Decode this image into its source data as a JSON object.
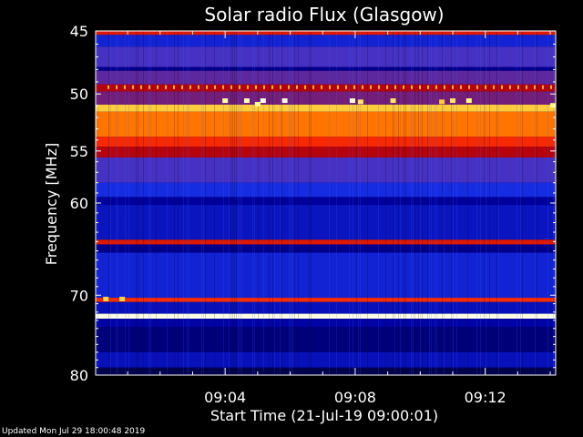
{
  "chart_data": {
    "type": "heatmap",
    "title": "Solar radio Flux (Glasgow)",
    "xlabel": "Start Time (21-Jul-19 09:00:01)",
    "ylabel": "Frequency [MHz]",
    "x_range": [
      "09:00:01",
      "09:14:10"
    ],
    "xticks": [
      {
        "label": "09:04",
        "value": "09:04:00"
      },
      {
        "label": "09:08",
        "value": "09:08:00"
      },
      {
        "label": "09:12",
        "value": "09:12:00"
      }
    ],
    "y_scale": "log",
    "ylim": [
      45,
      80
    ],
    "y_inverted": true,
    "yticks": [
      45,
      50,
      55,
      60,
      70,
      80
    ],
    "colormap": [
      "#000020",
      "#0000a0",
      "#2040ff",
      "#c00000",
      "#ff3000",
      "#ffa000",
      "#ffff80",
      "#ffffff"
    ],
    "bands": [
      {
        "f_low": 45.0,
        "f_high": 45.3,
        "level": 0.5
      },
      {
        "f_low": 45.3,
        "f_high": 46.2,
        "level": 0.22
      },
      {
        "f_low": 46.2,
        "f_high": 47.8,
        "level": 0.32
      },
      {
        "f_low": 47.8,
        "f_high": 48.1,
        "level": 0.12
      },
      {
        "f_low": 48.1,
        "f_high": 49.2,
        "level": 0.34
      },
      {
        "f_low": 49.2,
        "f_high": 49.8,
        "level": 0.42
      },
      {
        "f_low": 49.8,
        "f_high": 50.9,
        "level": 0.36
      },
      {
        "f_low": 50.9,
        "f_high": 51.5,
        "level": 0.78
      },
      {
        "f_low": 51.5,
        "f_high": 53.7,
        "level": 0.66
      },
      {
        "f_low": 53.7,
        "f_high": 54.6,
        "level": 0.55
      },
      {
        "f_low": 54.6,
        "f_high": 55.6,
        "level": 0.42
      },
      {
        "f_low": 55.6,
        "f_high": 58.0,
        "level": 0.32
      },
      {
        "f_low": 58.0,
        "f_high": 59.4,
        "level": 0.24
      },
      {
        "f_low": 59.4,
        "f_high": 60.2,
        "level": 0.14
      },
      {
        "f_low": 60.2,
        "f_high": 63.8,
        "level": 0.19
      },
      {
        "f_low": 63.8,
        "f_high": 64.3,
        "level": 0.5
      },
      {
        "f_low": 64.3,
        "f_high": 65.2,
        "level": 0.12
      },
      {
        "f_low": 65.2,
        "f_high": 70.3,
        "level": 0.22
      },
      {
        "f_low": 70.3,
        "f_high": 70.8,
        "level": 0.56
      },
      {
        "f_low": 70.8,
        "f_high": 72.2,
        "level": 0.18
      },
      {
        "f_low": 72.2,
        "f_high": 72.8,
        "level": 0.97
      },
      {
        "f_low": 72.8,
        "f_high": 73.8,
        "level": 0.15
      },
      {
        "f_low": 73.8,
        "f_high": 77.0,
        "level": 0.1
      },
      {
        "f_low": 77.0,
        "f_high": 79.0,
        "level": 0.18
      },
      {
        "f_low": 79.0,
        "f_high": 80.0,
        "level": 0.05
      }
    ],
    "bursts": [
      {
        "time": "09:04:00",
        "freq": 50.6,
        "level": 0.9
      },
      {
        "time": "09:04:40",
        "freq": 50.6,
        "level": 0.92
      },
      {
        "time": "09:05:00",
        "freq": 50.9,
        "level": 0.88
      },
      {
        "time": "09:05:10",
        "freq": 50.6,
        "level": 0.98
      },
      {
        "time": "09:05:50",
        "freq": 50.6,
        "level": 0.96
      },
      {
        "time": "09:07:55",
        "freq": 50.6,
        "level": 0.95
      },
      {
        "time": "09:08:10",
        "freq": 50.7,
        "level": 0.82
      },
      {
        "time": "09:09:10",
        "freq": 50.6,
        "level": 0.82
      },
      {
        "time": "09:10:40",
        "freq": 50.7,
        "level": 0.78
      },
      {
        "time": "09:11:00",
        "freq": 50.6,
        "level": 0.82
      },
      {
        "time": "09:11:30",
        "freq": 50.6,
        "level": 0.86
      },
      {
        "time": "09:14:05",
        "freq": 51.0,
        "level": 0.85
      },
      {
        "time": "09:00:20",
        "freq": 70.5,
        "level": 0.8
      },
      {
        "time": "09:00:50",
        "freq": 70.5,
        "level": 0.8
      }
    ],
    "dotted_line": {
      "freq": 49.4,
      "level": 0.75
    }
  },
  "footer": {
    "updated": "Updated Mon Jul 29 18:00:48 2019"
  }
}
